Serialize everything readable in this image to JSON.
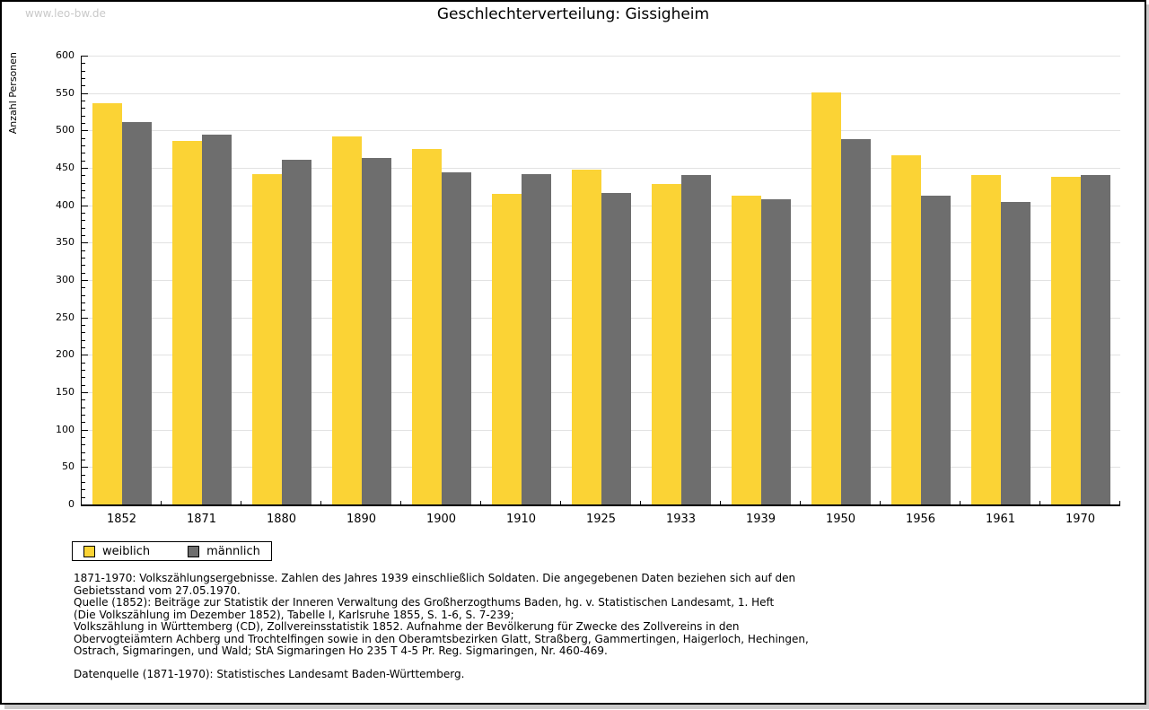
{
  "page": {
    "watermark": "www.leo-bw.de",
    "title": "Geschlechterverteilung: Gissigheim"
  },
  "chart_data": {
    "type": "bar",
    "title": "Geschlechterverteilung: Gissigheim",
    "xlabel": "",
    "ylabel": "Anzahl Personen",
    "ylim": [
      0,
      600
    ],
    "ytick_step": 50,
    "minor_tick_step": 10,
    "grid": true,
    "legend_position": "bottom-left",
    "categories": [
      "1852",
      "1871",
      "1880",
      "1890",
      "1900",
      "1910",
      "1925",
      "1933",
      "1939",
      "1950",
      "1956",
      "1961",
      "1970"
    ],
    "series": [
      {
        "name": "weiblich",
        "color": "#fbd335",
        "values": [
          536,
          486,
          442,
          492,
          475,
          415,
          448,
          429,
          413,
          551,
          467,
          440,
          438
        ]
      },
      {
        "name": "männlich",
        "color": "#6e6e6e",
        "values": [
          511,
          494,
          461,
          463,
          444,
          442,
          416,
          441,
          408,
          489,
          413,
          405,
          440
        ]
      }
    ]
  },
  "footer": {
    "lines": [
      "1871-1970: Volkszählungsergebnisse. Zahlen des Jahres 1939 einschließlich Soldaten. Die angegebenen Daten beziehen sich auf den",
      "Gebietsstand vom 27.05.1970.",
      "Quelle (1852): Beiträge zur Statistik der Inneren Verwaltung des Großherzogthums Baden, hg. v. Statistischen Landesamt, 1. Heft",
      "(Die Volkszählung im Dezember 1852), Tabelle I, Karlsruhe 1855, S. 1-6, S. 7-239;",
      "Volkszählung in Württemberg (CD), Zollvereinsstatistik 1852. Aufnahme der Bevölkerung für Zwecke des Zollvereins in den",
      "Obervogteiämtern Achberg und Trochtelfingen sowie in den Oberamtsbezirken Glatt, Straßberg, Gammertingen, Haigerloch, Hechingen,",
      "Ostrach, Sigmaringen, und Wald; StA Sigmaringen Ho 235 T 4-5 Pr. Reg. Sigmaringen, Nr. 460-469."
    ],
    "datasource": "Datenquelle (1871-1970): Statistisches Landesamt Baden-Württemberg."
  }
}
